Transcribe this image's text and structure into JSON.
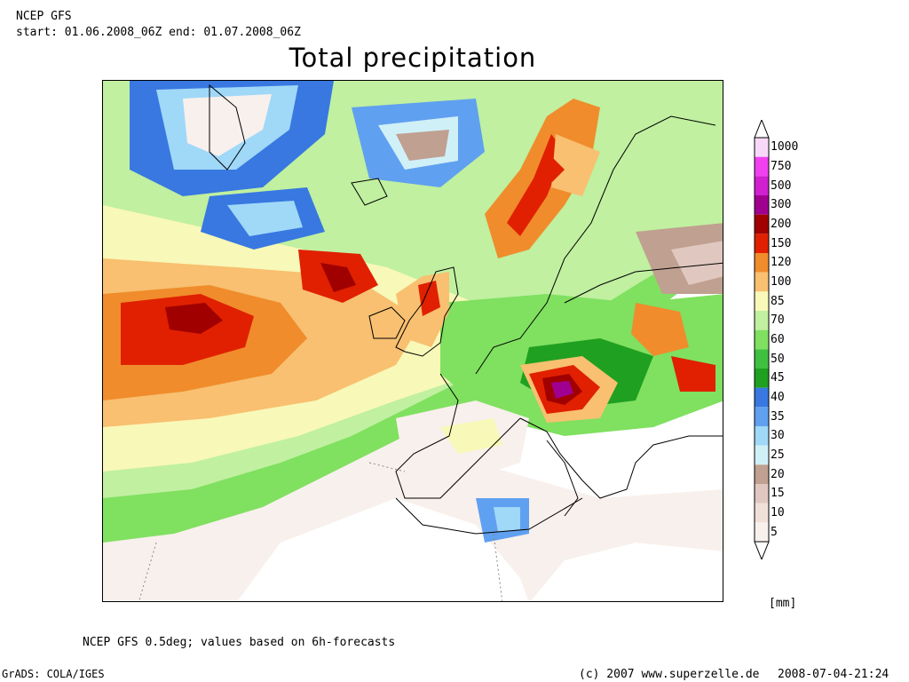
{
  "header": {
    "model": "NCEP GFS",
    "period": "start: 01.06.2008_06Z end: 01.07.2008_06Z"
  },
  "title": "Total precipitation",
  "legend": {
    "unit": "[mm]",
    "levels": [
      {
        "label": "1000",
        "color": "#f8d8f8"
      },
      {
        "label": "750",
        "color": "#f040f0"
      },
      {
        "label": "500",
        "color": "#d020d0"
      },
      {
        "label": "300",
        "color": "#a00090"
      },
      {
        "label": "200",
        "color": "#a00000"
      },
      {
        "label": "150",
        "color": "#e02000"
      },
      {
        "label": "120",
        "color": "#f08c2c"
      },
      {
        "label": "100",
        "color": "#f8c070"
      },
      {
        "label": "85",
        "color": "#f8f8b8"
      },
      {
        "label": "70",
        "color": "#c0f0a0"
      },
      {
        "label": "60",
        "color": "#80e060"
      },
      {
        "label": "50",
        "color": "#40c040"
      },
      {
        "label": "45",
        "color": "#20a020"
      },
      {
        "label": "40",
        "color": "#3878e0"
      },
      {
        "label": "35",
        "color": "#60a0f0"
      },
      {
        "label": "30",
        "color": "#a0d8f8"
      },
      {
        "label": "25",
        "color": "#d0f0f8"
      },
      {
        "label": "20",
        "color": "#c0a090"
      },
      {
        "label": "15",
        "color": "#e0c8c0"
      },
      {
        "label": "10",
        "color": "#f0e0d8"
      },
      {
        "label": "5",
        "color": "#f8f0ec"
      }
    ]
  },
  "footer": {
    "note": "NCEP GFS 0.5deg; values based on 6h-forecasts",
    "software": "GrADS: COLA/IGES",
    "copyright": "(c) 2007 www.superzelle.de",
    "timestamp": "2008-07-04-21:24"
  }
}
